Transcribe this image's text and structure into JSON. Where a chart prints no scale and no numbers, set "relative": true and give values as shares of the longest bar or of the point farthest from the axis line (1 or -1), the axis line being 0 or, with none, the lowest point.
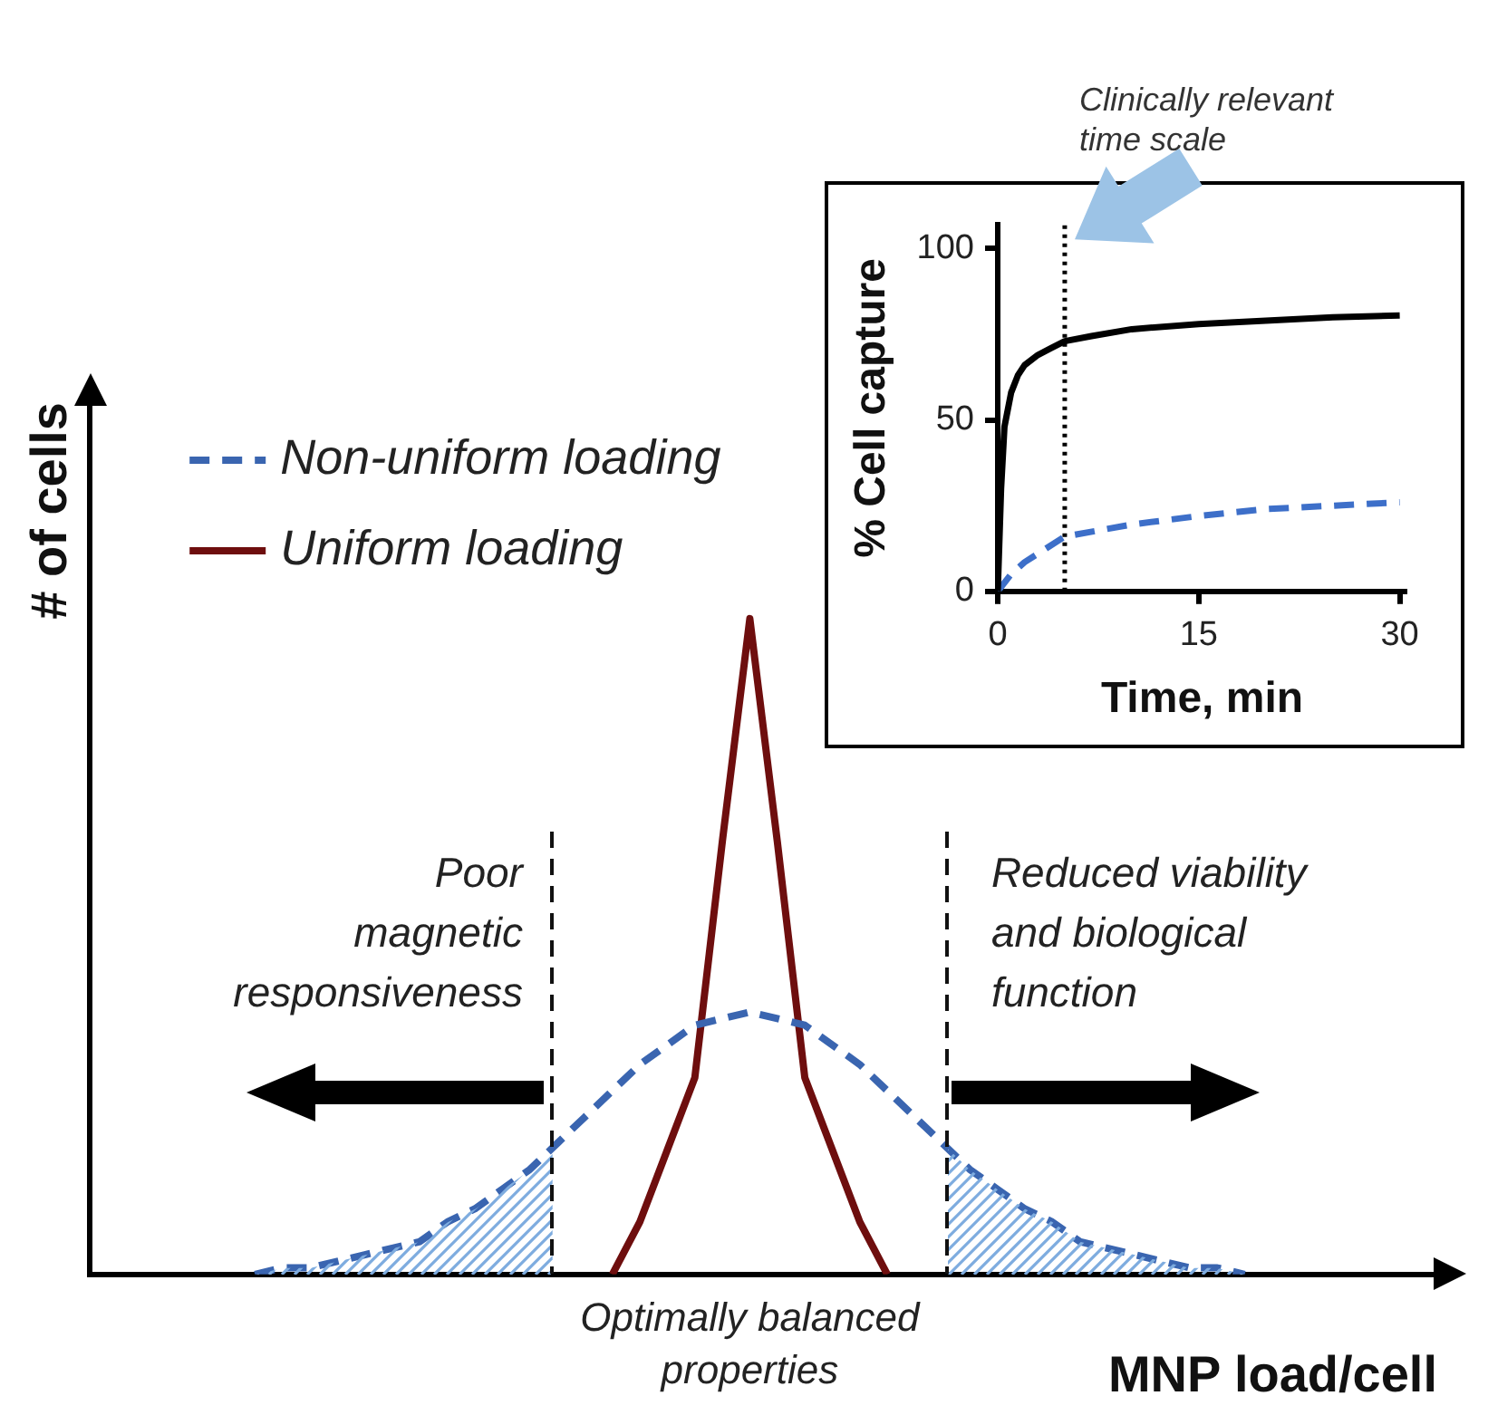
{
  "chart_data": [
    {
      "type": "line",
      "relative": true,
      "xlabel": "MNP load/cell",
      "ylabel": "# of cells",
      "tick_labels": false,
      "grid": false,
      "legend": "top left",
      "marker": "none",
      "categories": [
        null,
        null,
        null,
        null,
        null,
        null,
        null,
        null,
        null,
        null,
        null,
        null,
        null,
        null,
        null,
        null,
        null,
        null,
        null,
        null,
        null,
        null,
        null,
        null,
        null,
        null,
        null,
        null,
        null,
        null,
        null,
        null,
        null,
        null,
        null,
        null,
        null,
        null,
        null,
        null,
        null,
        null,
        null,
        null,
        null,
        null,
        null,
        null,
        null,
        null
      ],
      "series": [
        {
          "name": "Non-uniform loading",
          "color": "#3a65b0",
          "line_style": "dashed",
          "values": [
            null,
            null,
            null,
            null,
            null,
            null,
            0,
            0.01,
            0.01,
            0.02,
            0.03,
            0.04,
            0.05,
            0.08,
            0.1,
            0.13,
            0.16,
            0.2,
            0.24,
            0.28,
            0.32,
            0.35,
            0.38,
            0.39,
            0.4,
            0.39,
            0.38,
            0.35,
            0.32,
            0.28,
            0.24,
            0.2,
            0.16,
            0.13,
            0.1,
            0.08,
            0.05,
            0.04,
            0.03,
            0.02,
            0.01,
            0.01,
            0,
            null,
            null,
            null,
            null,
            null,
            null,
            null
          ]
        },
        {
          "name": "Uniform loading",
          "color": "#6e0e0e",
          "line_style": "solid",
          "values": [
            null,
            null,
            null,
            null,
            null,
            null,
            null,
            null,
            null,
            null,
            null,
            null,
            null,
            null,
            null,
            null,
            null,
            null,
            null,
            0,
            0.08,
            0.19,
            0.3,
            0.66,
            1,
            0.66,
            0.3,
            0.19,
            0.08,
            0,
            null,
            null,
            null,
            null,
            null,
            null,
            null,
            null,
            null,
            null,
            null,
            null,
            null,
            null,
            null,
            null,
            null,
            null,
            null,
            null
          ]
        }
      ],
      "annotations": [
        "Poor magnetic responsiveness",
        "Reduced viability and biological function",
        "Optimally balanced properties"
      ]
    },
    {
      "type": "line",
      "xlabel": "Time, min",
      "ylabel": "% Cell capture",
      "xlim": [
        0,
        30.5
      ],
      "xticks": [
        0,
        15,
        30
      ],
      "ylim": [
        0,
        107
      ],
      "yticks": [
        0,
        50,
        100
      ],
      "grid": false,
      "marker": "none",
      "series": [
        {
          "color": "#000000",
          "line_style": "solid",
          "x": [
            0,
            0.25,
            0.5,
            1,
            1.5,
            2,
            3,
            4,
            5,
            7,
            10,
            15,
            20,
            25,
            30
          ],
          "values": [
            0,
            30,
            48,
            58,
            63,
            66,
            69,
            71,
            73,
            74.5,
            76.5,
            78,
            79,
            80,
            80.5
          ]
        },
        {
          "color": "#3d6fc9",
          "line_style": "dashed",
          "x": [
            0,
            1,
            2,
            3,
            5,
            10,
            15,
            20,
            25,
            30
          ],
          "values": [
            0,
            5,
            8.5,
            11,
            16,
            19.5,
            22,
            24,
            25,
            26
          ]
        }
      ],
      "ref_lines": [
        {
          "axis": "x",
          "value": 5,
          "label": "Clinically relevant time scale",
          "line_style": "dotted",
          "color": "#000000"
        }
      ]
    }
  ]
}
